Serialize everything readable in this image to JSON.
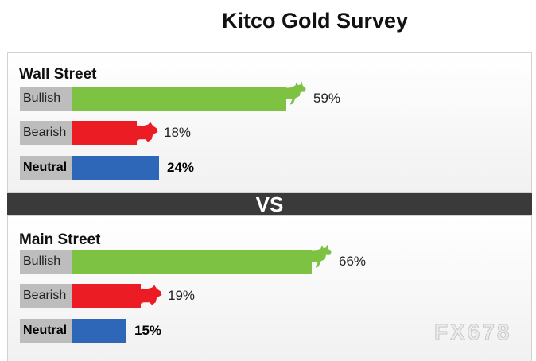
{
  "title": "Kitco Gold Survey",
  "vs_label": "VS",
  "watermark": "FX678",
  "colors": {
    "bullish": "#7dc242",
    "bearish": "#ec1c24",
    "neutral": "#2e67b8",
    "label_bg": "#bdbdbd",
    "vs_band": "#3a3a3a"
  },
  "icons": {
    "bullish": "bull-icon",
    "bearish": "bear-icon"
  },
  "chart_data": {
    "type": "bar",
    "title": "Kitco Gold Survey",
    "categories": [
      "Bullish",
      "Bearish",
      "Neutral"
    ],
    "series": [
      {
        "name": "Wall Street",
        "values": [
          59,
          18,
          24
        ],
        "labels": [
          "59%",
          "18%",
          "24%"
        ]
      },
      {
        "name": "Main Street",
        "values": [
          66,
          19,
          15
        ],
        "labels": [
          "66%",
          "19%",
          "15%"
        ]
      }
    ],
    "unit": "%",
    "xlim": [
      0,
      100
    ]
  }
}
